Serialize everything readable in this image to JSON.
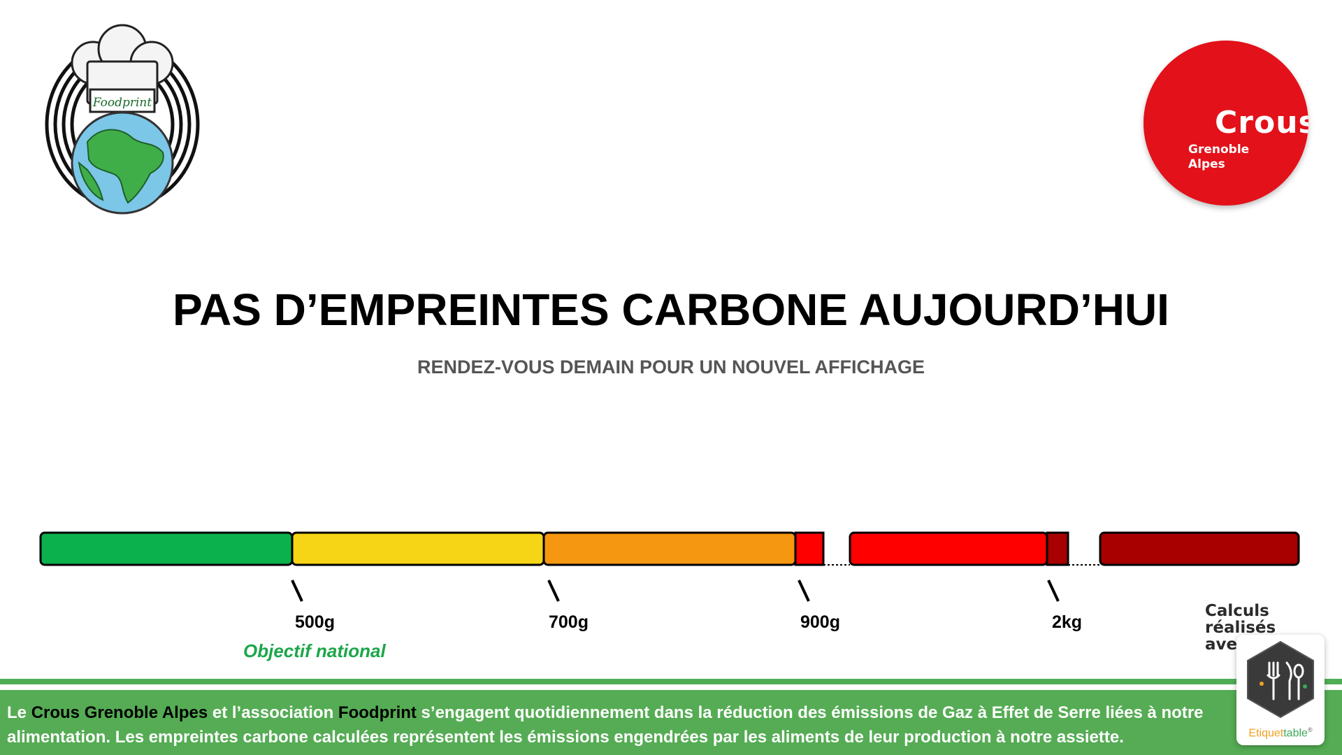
{
  "logos": {
    "foodprint_text": "Foodprint",
    "crous_word": "Crous",
    "crous_city_line1": "Grenoble",
    "crous_city_line2": "Alpes"
  },
  "title": "PAS D’EMPREINTES CARBONE AUJOURD’HUI",
  "subtitle": "RENDEZ-VOUS DEMAIN POUR UN NOUVEL AFFICHAGE",
  "scale": {
    "segments": [
      {
        "color": "#0bb14c"
      },
      {
        "color": "#f6d516"
      },
      {
        "color": "#f59710"
      },
      {
        "color": "#fe0000"
      },
      {
        "color": "#a80000"
      }
    ],
    "ticks": [
      {
        "label": "500g"
      },
      {
        "label": "700g"
      },
      {
        "label": "900g"
      },
      {
        "label": "2kg"
      }
    ],
    "objective": "Objectif national"
  },
  "etiquettable": {
    "calc_line1": "Calculs réalisés",
    "calc_line2": "avec",
    "brand_part1": "Etiquet",
    "brand_part2": "table",
    "brand_mark": "®",
    "icon": "cutlery-icon"
  },
  "footer": {
    "t1": "Le ",
    "crous": "Crous Grenoble Alpes",
    "t2": " et l’association ",
    "foodprint": "Foodprint",
    "t3": " s’engagent quotidiennement dans la réduction des émissions de Gaz à Effet de Serre liées à notre alimentation. Les empreintes carbone calculées représentent les émissions engendrées par les aliments de leur production à notre assiette."
  }
}
